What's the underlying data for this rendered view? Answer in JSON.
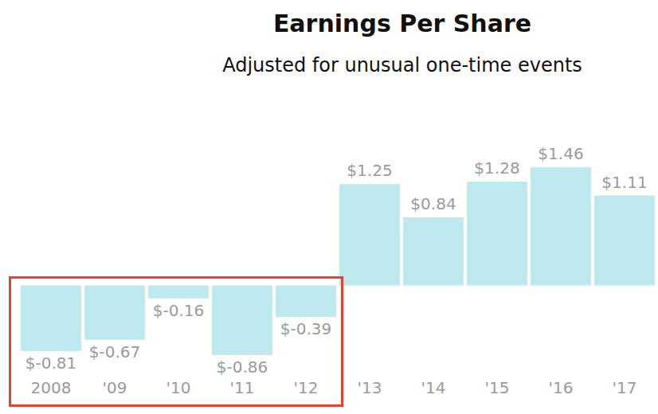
{
  "chart_data": {
    "type": "bar",
    "title": "Earnings Per Share",
    "subtitle": "Adjusted for unusual one-time events",
    "categories": [
      "2008",
      "'09",
      "'10",
      "'11",
      "'12",
      "'13",
      "'14",
      "'15",
      "'16",
      "'17"
    ],
    "values": [
      -0.81,
      -0.67,
      -0.16,
      -0.86,
      -0.39,
      1.25,
      0.84,
      1.28,
      1.46,
      1.11
    ],
    "value_labels": [
      "$-0.81",
      "$-0.67",
      "$-0.16",
      "$-0.86",
      "$-0.39",
      "$1.25",
      "$0.84",
      "$1.28",
      "$1.46",
      "$1.11"
    ],
    "color": "#bde9ef",
    "data_labels": true,
    "tick_labels": "x"
  }
}
